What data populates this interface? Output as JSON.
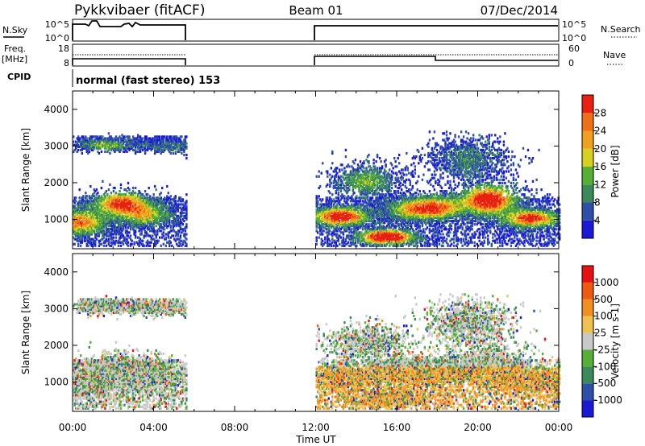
{
  "header": {
    "station": "Pykkvibaer (fitACF)",
    "beam": "Beam 01",
    "date": "07/Dec/2014",
    "cpid_label": "CPID",
    "cpid_value": "normal (fast stereo) 153"
  },
  "strips": {
    "nsky": {
      "left_label": "N.Sky",
      "right_label": "N.Search",
      "left_ticks": [
        "10^5",
        "10^0"
      ],
      "right_ticks": [
        "10^5",
        "10^0"
      ]
    },
    "freq": {
      "left_label_1": "Freq.",
      "left_label_2": "[MHz]",
      "right_label": "Nave",
      "left_ticks": [
        "18",
        "8"
      ],
      "right_ticks": [
        "60",
        "0"
      ]
    }
  },
  "colors": {
    "power_scale": [
      "#1a1ad6",
      "#2f4fa8",
      "#3a8a5a",
      "#55b035",
      "#d8d020",
      "#f0a020",
      "#f07018",
      "#e82010"
    ],
    "velocity_scale": [
      "#e81010",
      "#f05a10",
      "#f09020",
      "#f0c050",
      "#c8c8c8",
      "#55b035",
      "#3a8a5a",
      "#2f4fa8",
      "#1a1ad6"
    ]
  },
  "chart_data": [
    {
      "type": "heatmap",
      "name": "power",
      "ylabel": "Slant Range [km]",
      "xlabel": "",
      "y_ticks": [
        1000,
        2000,
        3000,
        4000
      ],
      "ylim": [
        200,
        4500
      ],
      "x_ticks": [
        "00:00",
        "04:00",
        "08:00",
        "12:00",
        "16:00",
        "20:00",
        "00:00"
      ],
      "xlim": [
        0,
        24
      ],
      "colorbar_label": "Power [dB]",
      "colorbar_ticks": [
        "4",
        "8",
        "12",
        "16",
        "20",
        "24",
        "28"
      ],
      "data_gaps_hours": [
        [
          5.6,
          12.0
        ]
      ],
      "observed_intervals_hours": [
        [
          0.0,
          5.6
        ],
        [
          12.0,
          24.0
        ]
      ]
    },
    {
      "type": "heatmap",
      "name": "velocity",
      "ylabel": "Slant Range [km]",
      "xlabel": "Time UT",
      "y_ticks": [
        1000,
        2000,
        3000,
        4000
      ],
      "ylim": [
        200,
        4500
      ],
      "x_ticks": [
        "00:00",
        "04:00",
        "08:00",
        "12:00",
        "16:00",
        "20:00",
        "00:00"
      ],
      "xlim": [
        0,
        24
      ],
      "colorbar_label": "Velocity [m s-1]",
      "colorbar_ticks": [
        "1000",
        "500",
        "100",
        "25",
        "-25",
        "-100",
        "-500",
        "-1000"
      ],
      "data_gaps_hours": [
        [
          5.6,
          12.0
        ]
      ],
      "observed_intervals_hours": [
        [
          0.0,
          5.6
        ],
        [
          12.0,
          24.0
        ]
      ]
    }
  ]
}
